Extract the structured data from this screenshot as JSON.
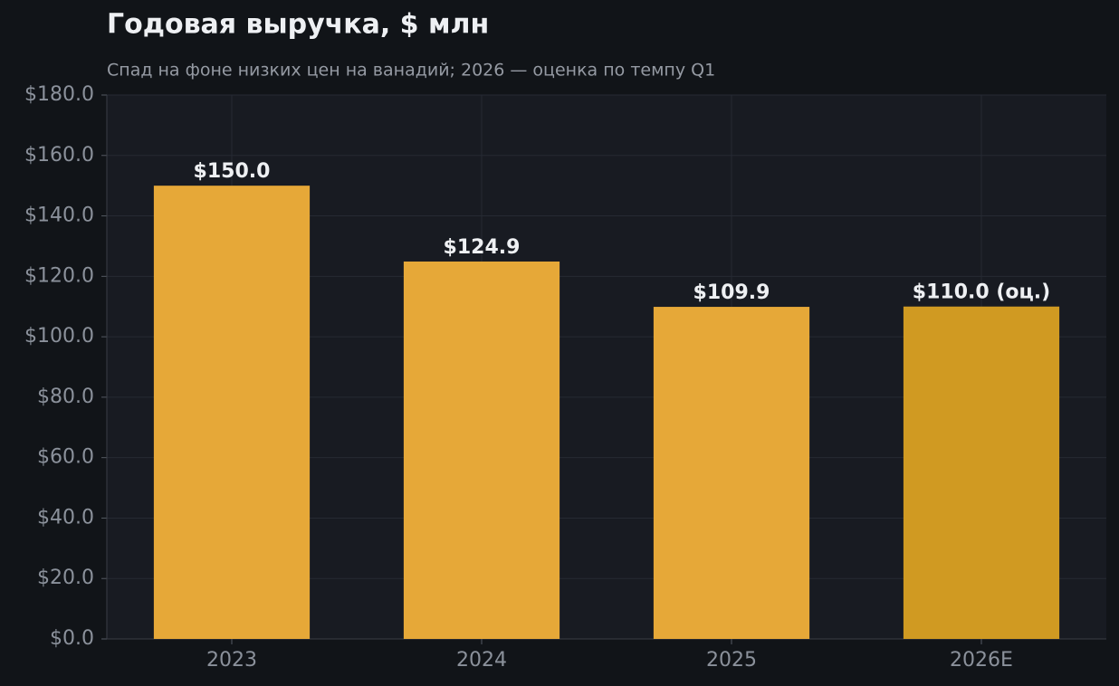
{
  "chart_data": {
    "type": "bar",
    "title": "Годовая выручка, $ млн",
    "subtitle": "Спад на фоне низких цен на ванадий; 2026 — оценка по темпу Q1",
    "categories": [
      "2023",
      "2024",
      "2025",
      "2026E"
    ],
    "values": [
      150.0,
      124.9,
      109.9,
      110.0
    ],
    "value_labels": [
      "$150.0",
      "$124.9",
      "$109.9",
      "$110.0 (оц.)"
    ],
    "colors": [
      "#e6a838",
      "#e6a838",
      "#e6a838",
      "#d09a22"
    ],
    "ylim": [
      0,
      180
    ],
    "yticks": [
      {
        "value": 0,
        "label": "$0.0"
      },
      {
        "value": 20,
        "label": "$20.0"
      },
      {
        "value": 40,
        "label": "$40.0"
      },
      {
        "value": 60,
        "label": "$60.0"
      },
      {
        "value": 80,
        "label": "$80.0"
      },
      {
        "value": 100,
        "label": "$100.0"
      },
      {
        "value": 120,
        "label": "$120.0"
      },
      {
        "value": 140,
        "label": "$140.0"
      },
      {
        "value": 160,
        "label": "$160.0"
      },
      {
        "value": 180,
        "label": "$180.0"
      }
    ],
    "grid": true
  }
}
